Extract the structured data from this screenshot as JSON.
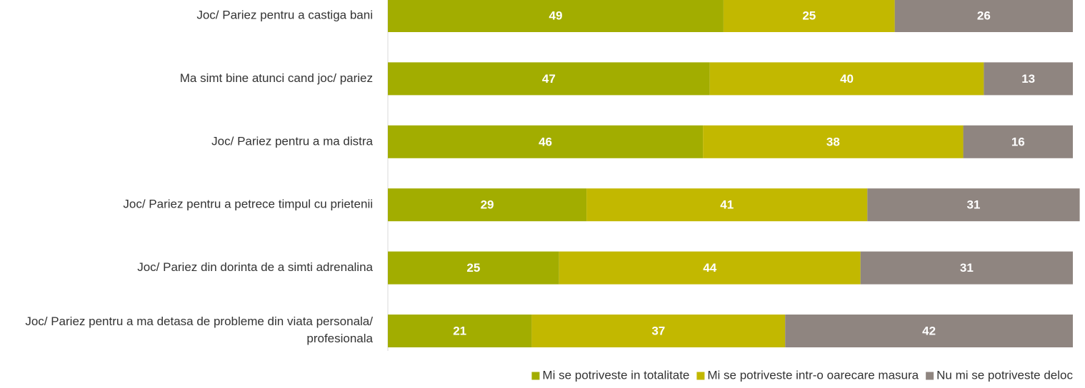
{
  "chart_data": {
    "type": "bar",
    "orientation": "horizontal",
    "stacked": true,
    "categories": [
      "Joc/ Pariez pentru a castiga bani",
      "Ma simt bine atunci cand joc/ pariez",
      "Joc/ Pariez pentru a ma distra",
      "Joc/ Pariez pentru a petrece timpul cu prietenii",
      "Joc/ Pariez din dorinta de a simti adrenalina",
      "Joc/ Pariez pentru a ma detasa de probleme din viata personala/ profesionala"
    ],
    "series": [
      {
        "name": "Mi se potriveste in totalitate",
        "color": "#a2ad00",
        "values": [
          49,
          47,
          46,
          29,
          25,
          21
        ]
      },
      {
        "name": "Mi se potriveste intr-o oarecare masura",
        "color": "#c2b800",
        "values": [
          25,
          40,
          38,
          41,
          44,
          37
        ]
      },
      {
        "name": "Nu mi se potriveste deloc",
        "color": "#8f8580",
        "values": [
          26,
          13,
          16,
          31,
          31,
          42
        ]
      }
    ],
    "xlim": [
      0,
      100
    ],
    "legend": "bottom",
    "data_labels": true
  }
}
